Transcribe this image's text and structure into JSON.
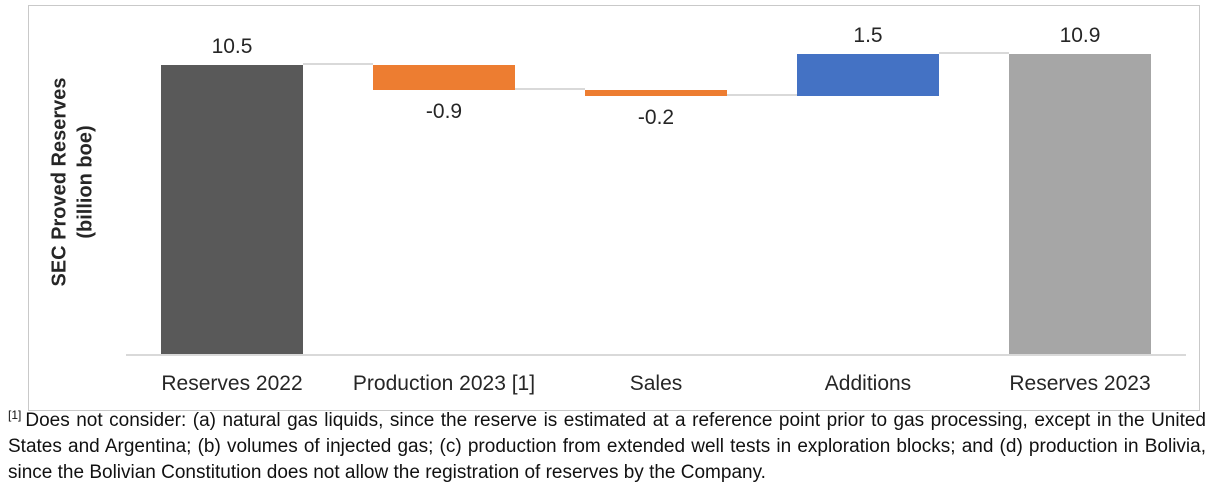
{
  "chart_data": {
    "type": "bar",
    "subtype": "waterfall",
    "title": "",
    "xlabel": "",
    "ylabel": "SEC Proved Reserves (billion boe)",
    "ylabel_line1": "SEC Proved Reserves",
    "ylabel_line2": "(billion boe)",
    "ylim": [
      0,
      12.6
    ],
    "gridlines": false,
    "value_axis_visible": false,
    "legend": "none",
    "categories": [
      "Reserves 2022",
      "Production 2023 [1]",
      "Sales",
      "Additions",
      "Reserves 2023"
    ],
    "values": [
      10.5,
      -0.9,
      -0.2,
      1.5,
      10.9
    ],
    "bars": [
      {
        "category": "Reserves 2022",
        "value": 10.5,
        "label": "10.5",
        "start": 0,
        "end": 10.5,
        "role": "total-start",
        "color": "#595959",
        "label_position": "above"
      },
      {
        "category": "Production 2023 [1]",
        "value": -0.9,
        "label": "-0.9",
        "start": 10.5,
        "end": 9.6,
        "role": "decrease",
        "color": "#ED7D31",
        "label_position": "below"
      },
      {
        "category": "Sales",
        "value": -0.2,
        "label": "-0.2",
        "start": 9.6,
        "end": 9.4,
        "role": "decrease",
        "color": "#ED7D31",
        "label_position": "below"
      },
      {
        "category": "Additions",
        "value": 1.5,
        "label": "1.5",
        "start": 9.4,
        "end": 10.9,
        "role": "increase",
        "color": "#4472C4",
        "label_position": "above"
      },
      {
        "category": "Reserves 2023",
        "value": 10.9,
        "label": "10.9",
        "start": 0,
        "end": 10.9,
        "role": "total-end",
        "color": "#A6A6A6",
        "label_position": "above"
      }
    ],
    "connectors": [
      {
        "from": 0,
        "to": 1,
        "value": 10.5
      },
      {
        "from": 1,
        "to": 2,
        "value": 9.6
      },
      {
        "from": 2,
        "to": 3,
        "value": 9.4
      },
      {
        "from": 3,
        "to": 4,
        "value": 10.9
      }
    ],
    "colors": {
      "total_start_bar": "#595959",
      "decrease_bar": "#ED7D31",
      "increase_bar": "#4472C4",
      "total_end_bar": "#A6A6A6",
      "connector": "#D9D9D9",
      "axis": "#D9D9D9",
      "frame_border": "#C9C9C9",
      "text": "#262626"
    }
  },
  "footnote": {
    "marker": "[1]",
    "text": "Does not consider: (a) natural gas liquids, since the reserve is estimated at a reference point prior to gas processing, except in the United States and Argentina; (b) volumes of injected gas; (c) production from extended well tests in exploration blocks; and (d) production in Bolivia, since the Bolivian Constitution does not allow the registration of reserves by the Company."
  }
}
